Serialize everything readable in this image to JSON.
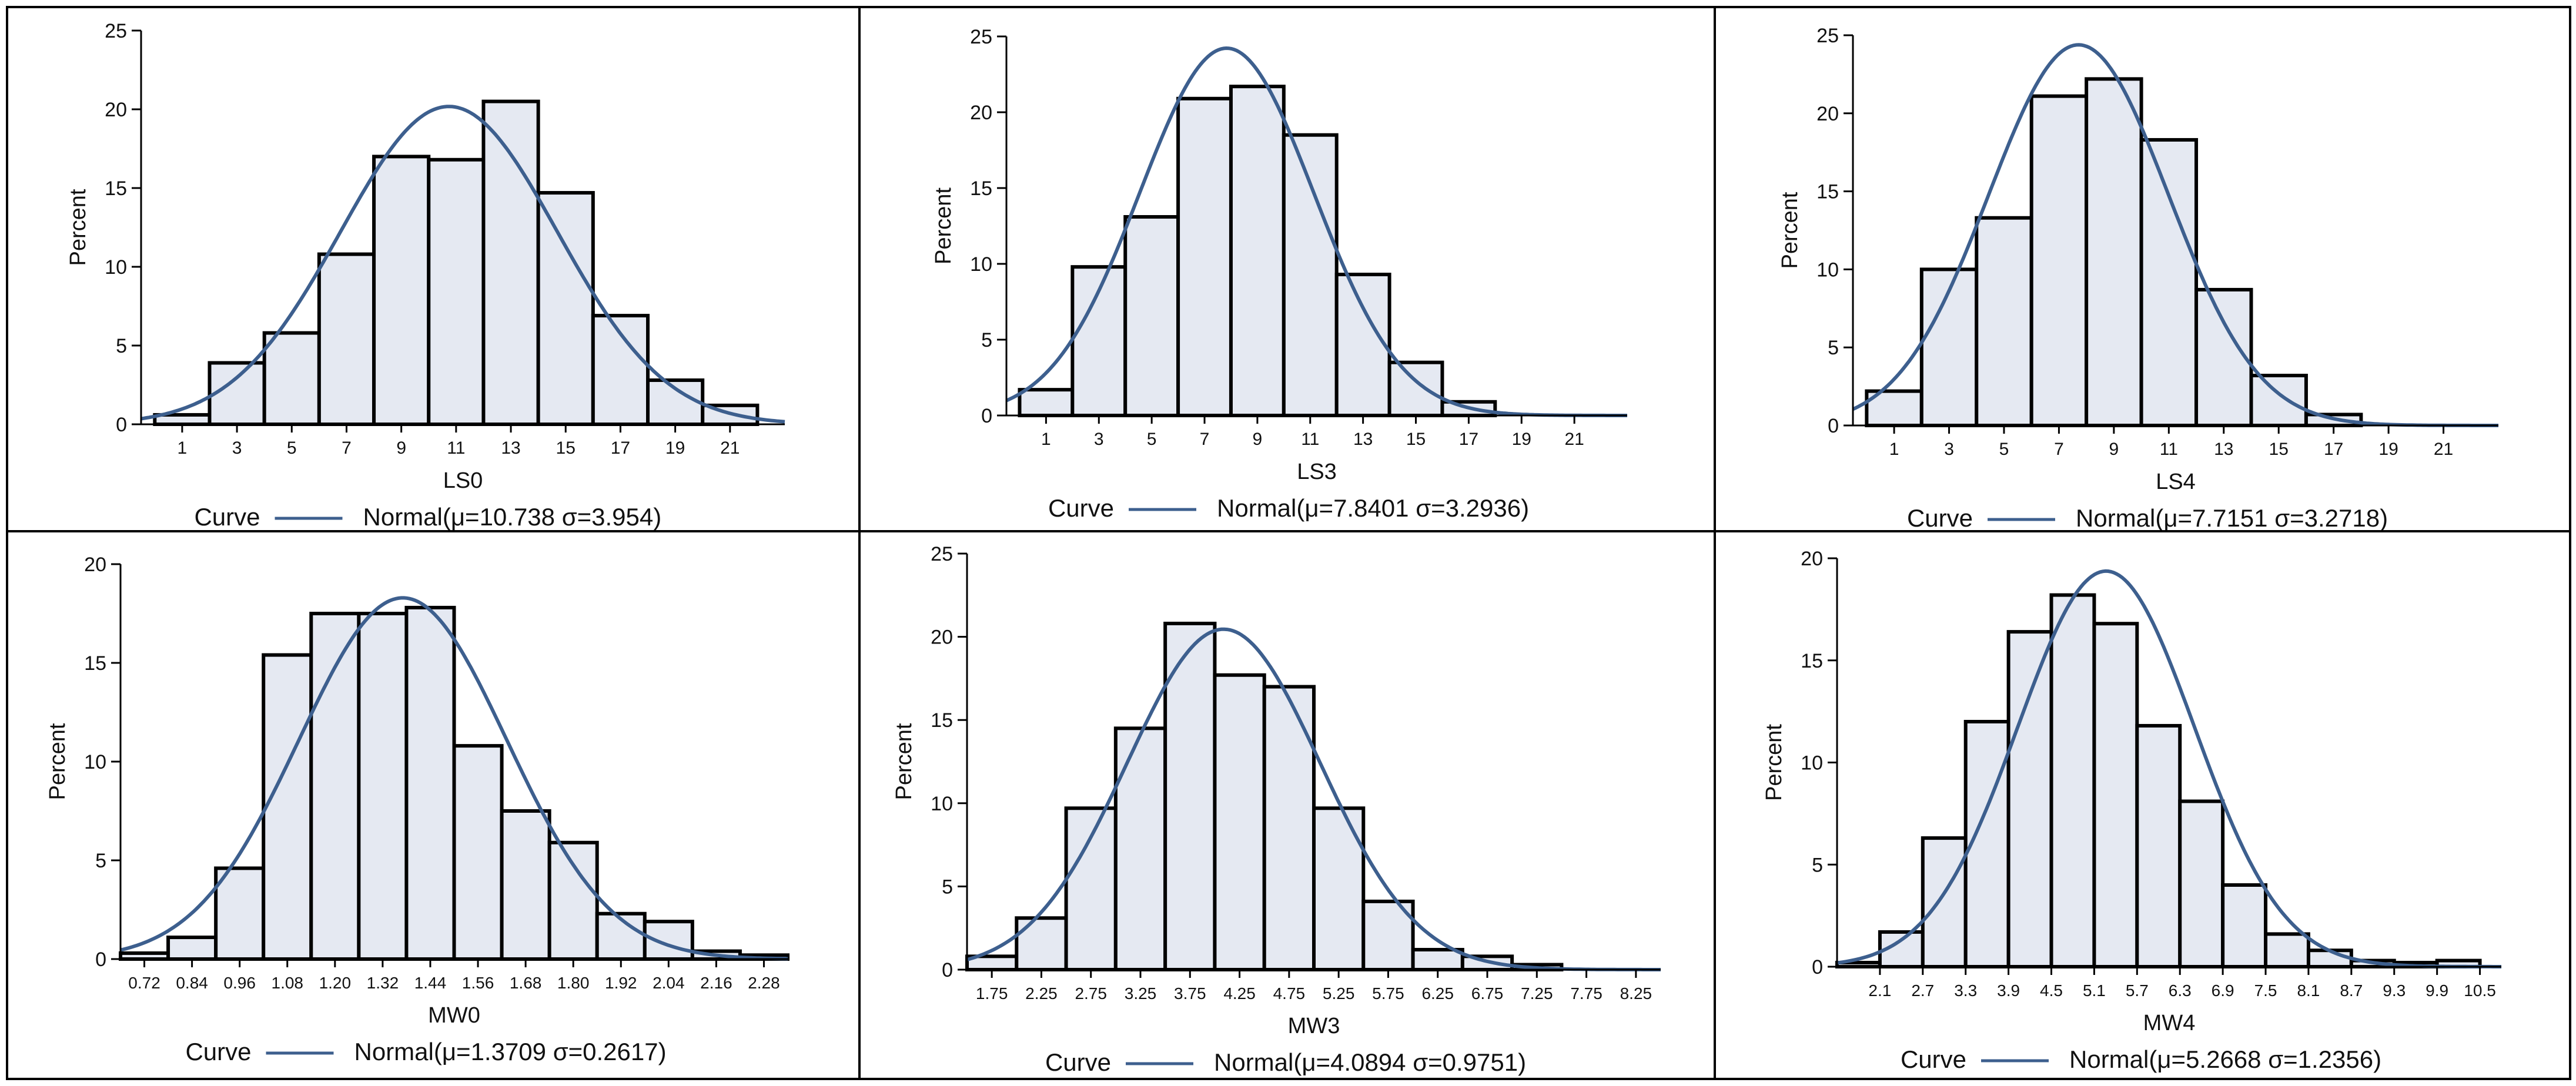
{
  "style": {
    "bar_fill": "#e5e9f2",
    "bar_stroke": "#000000",
    "curve_color": "#3d5f8e"
  },
  "chart_data": [
    {
      "type": "bar",
      "xlabel": "LS0",
      "ylabel": "Percent",
      "ylim": [
        0,
        25
      ],
      "yticks": [
        "0",
        "5",
        "10",
        "15",
        "20",
        "25"
      ],
      "xrange": [
        -0.5,
        23
      ],
      "xticks": [
        1,
        3,
        5,
        7,
        9,
        11,
        13,
        15,
        17,
        19,
        21
      ],
      "bin_start": 0,
      "bin_width": 2,
      "values": [
        0.6,
        3.9,
        5.8,
        10.8,
        17.0,
        16.8,
        20.5,
        14.7,
        6.9,
        2.8,
        1.2
      ],
      "legend": {
        "label": "Curve",
        "text": "Normal(μ=10.738 σ=3.954)"
      },
      "normal": {
        "mu": 10.738,
        "sigma": 3.954
      }
    },
    {
      "type": "bar",
      "xlabel": "LS3",
      "ylabel": "Percent",
      "ylim": [
        0,
        25
      ],
      "yticks": [
        "0",
        "5",
        "10",
        "15",
        "20",
        "25"
      ],
      "xrange": [
        -0.5,
        23
      ],
      "xticks": [
        1,
        3,
        5,
        7,
        9,
        11,
        13,
        15,
        17,
        19,
        21
      ],
      "bin_start": 0,
      "bin_width": 2,
      "values": [
        1.7,
        9.8,
        13.1,
        20.9,
        21.7,
        18.5,
        9.3,
        3.5,
        0.9
      ],
      "legend": {
        "label": "Curve",
        "text": "Normal(μ=7.8401 σ=3.2936)"
      },
      "normal": {
        "mu": 7.8401,
        "sigma": 3.2936
      }
    },
    {
      "type": "bar",
      "xlabel": "LS4",
      "ylabel": "Percent",
      "ylim": [
        0,
        25
      ],
      "yticks": [
        "0",
        "5",
        "10",
        "15",
        "20",
        "25"
      ],
      "xrange": [
        -0.5,
        23
      ],
      "xticks": [
        1,
        3,
        5,
        7,
        9,
        11,
        13,
        15,
        17,
        19,
        21
      ],
      "bin_start": 0,
      "bin_width": 2,
      "values": [
        2.2,
        10.0,
        13.3,
        21.1,
        22.2,
        18.3,
        8.7,
        3.2,
        0.7
      ],
      "legend": {
        "label": "Curve",
        "text": "Normal(μ=7.7151 σ=3.2718)"
      },
      "normal": {
        "mu": 7.7151,
        "sigma": 3.2718
      }
    },
    {
      "type": "bar",
      "xlabel": "MW0",
      "ylabel": "Percent",
      "ylim": [
        0,
        20
      ],
      "yticks": [
        "0",
        "5",
        "10",
        "15",
        "20"
      ],
      "xrange": [
        0.66,
        2.34
      ],
      "xticks": [
        "0.72",
        "0.84",
        "0.96",
        "1.08",
        "1.20",
        "1.32",
        "1.44",
        "1.56",
        "1.68",
        "1.80",
        "1.92",
        "2.04",
        "2.16",
        "2.28"
      ],
      "bin_start": 0.66,
      "bin_width": 0.12,
      "values": [
        0.3,
        1.1,
        4.6,
        15.4,
        17.5,
        17.5,
        17.8,
        10.8,
        7.5,
        5.9,
        2.3,
        1.9,
        0.4,
        0.2
      ],
      "legend": {
        "label": "Curve",
        "text": "Normal(μ=1.3709 σ=0.2617)"
      },
      "normal": {
        "mu": 1.3709,
        "sigma": 0.2617
      }
    },
    {
      "type": "bar",
      "xlabel": "MW3",
      "ylabel": "Percent",
      "ylim": [
        0,
        25
      ],
      "yticks": [
        "0",
        "5",
        "10",
        "15",
        "20",
        "25"
      ],
      "xrange": [
        1.5,
        8.5
      ],
      "xticks": [
        "1.75",
        "2.25",
        "2.75",
        "3.25",
        "3.75",
        "4.25",
        "4.75",
        "5.25",
        "5.75",
        "6.25",
        "6.75",
        "7.25",
        "7.75",
        "8.25"
      ],
      "bin_start": 1.5,
      "bin_width": 0.5,
      "values": [
        0.8,
        3.1,
        9.7,
        14.5,
        20.8,
        17.7,
        17.0,
        9.7,
        4.1,
        1.2,
        0.8,
        0.3
      ],
      "legend": {
        "label": "Curve",
        "text": "Normal(μ=4.0894 σ=0.9751)"
      },
      "normal": {
        "mu": 4.0894,
        "sigma": 0.9751
      }
    },
    {
      "type": "bar",
      "xlabel": "MW4",
      "ylabel": "Percent",
      "ylim": [
        0,
        20
      ],
      "yticks": [
        "0",
        "5",
        "10",
        "15",
        "20"
      ],
      "xrange": [
        1.5,
        10.8
      ],
      "xticks": [
        "2.1",
        "2.7",
        "3.3",
        "3.9",
        "4.5",
        "5.1",
        "5.7",
        "6.3",
        "6.9",
        "7.5",
        "8.1",
        "8.7",
        "9.3",
        "9.9",
        "10.5"
      ],
      "bin_start": 1.5,
      "bin_width": 0.6,
      "values": [
        0.2,
        1.7,
        6.3,
        12.0,
        16.4,
        18.2,
        16.8,
        11.8,
        8.1,
        4.0,
        1.6,
        0.8,
        0.3,
        0.2,
        0.3
      ],
      "legend": {
        "label": "Curve",
        "text": "Normal(μ=5.2668 σ=1.2356)"
      },
      "normal": {
        "mu": 5.2668,
        "sigma": 1.2356
      }
    }
  ]
}
